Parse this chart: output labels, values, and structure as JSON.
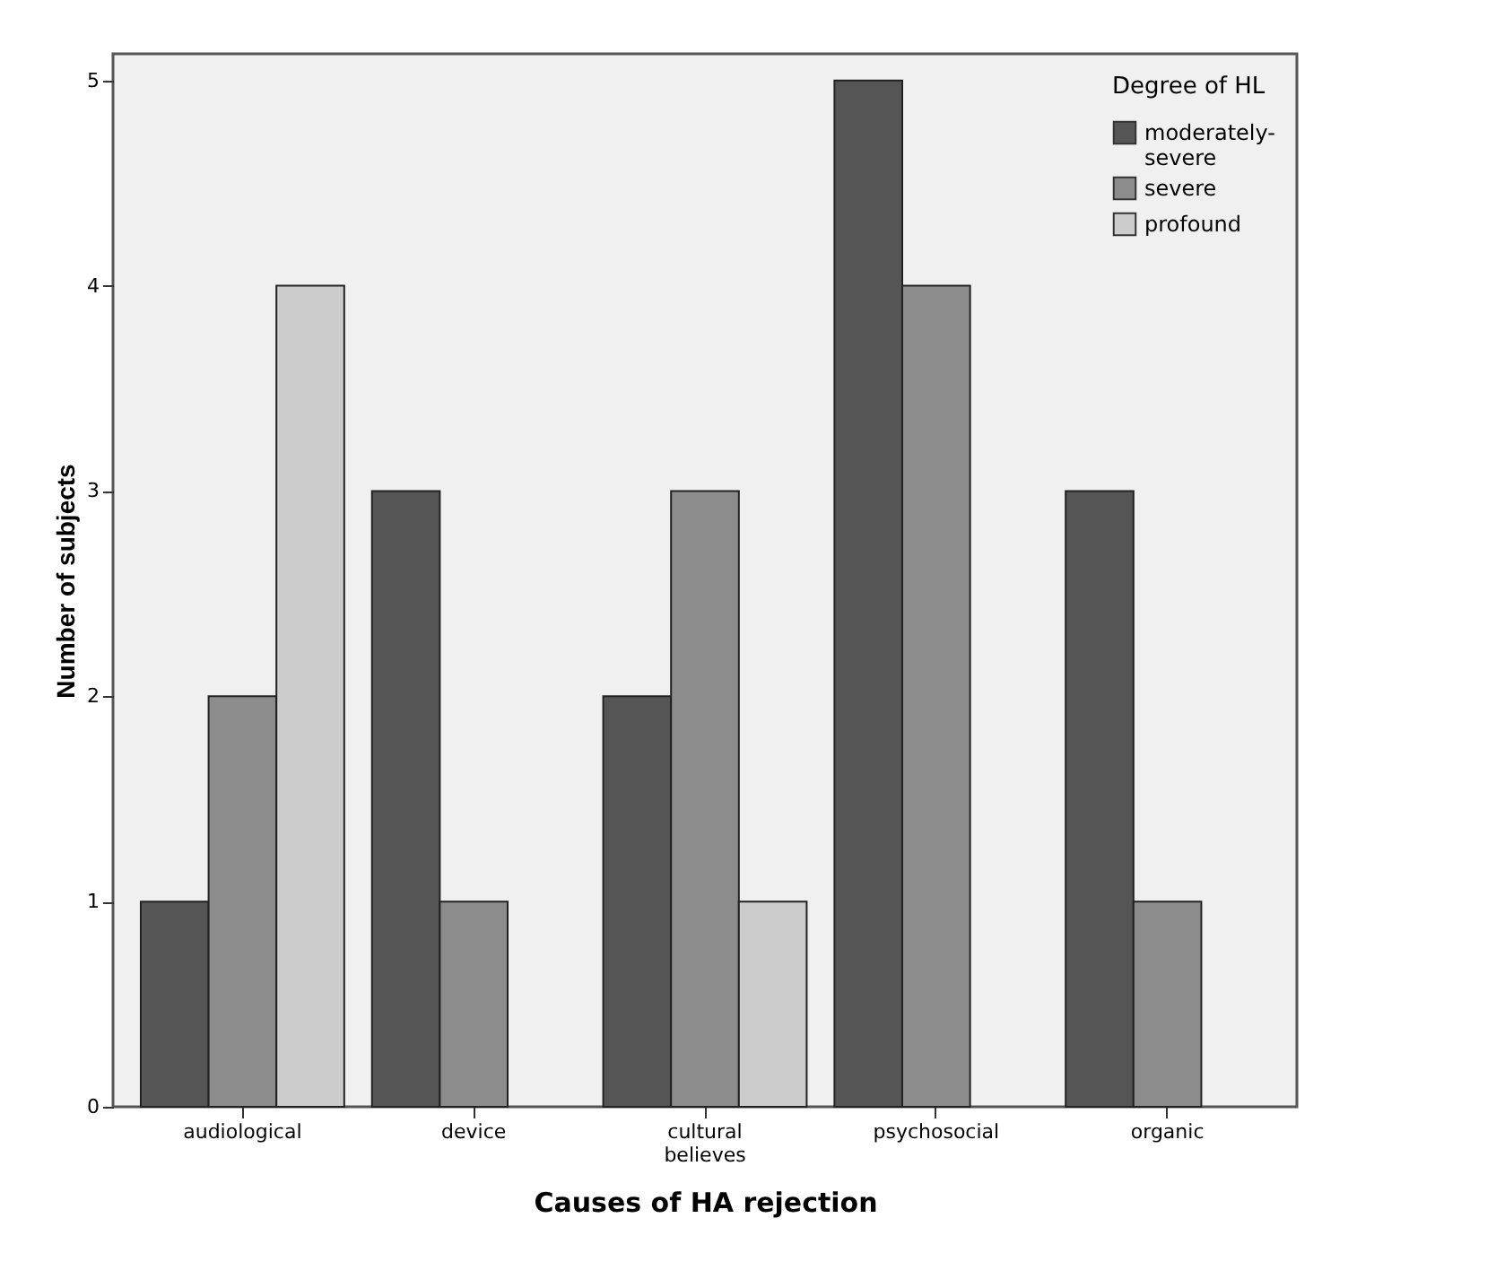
{
  "chart_data": {
    "type": "bar",
    "xlabel": "Causes of HA rejection",
    "ylabel": "Number of subjects",
    "legend_title": "Degree of HL",
    "categories": [
      "audiological",
      "device",
      "cultural believes",
      "psychosocial",
      "organic"
    ],
    "series": [
      {
        "name": "moderately-severe",
        "color": "#555555",
        "values": [
          1,
          3,
          2,
          5,
          3
        ]
      },
      {
        "name": "severe",
        "color": "#8c8c8c",
        "values": [
          2,
          1,
          3,
          4,
          1
        ]
      },
      {
        "name": "profound",
        "color": "#cccccc",
        "values": [
          4,
          null,
          1,
          null,
          null
        ]
      }
    ],
    "ylim": [
      0,
      5.13
    ],
    "yticks": [
      0,
      1,
      2,
      3,
      4,
      5
    ],
    "grid": false,
    "legend": "top right"
  }
}
